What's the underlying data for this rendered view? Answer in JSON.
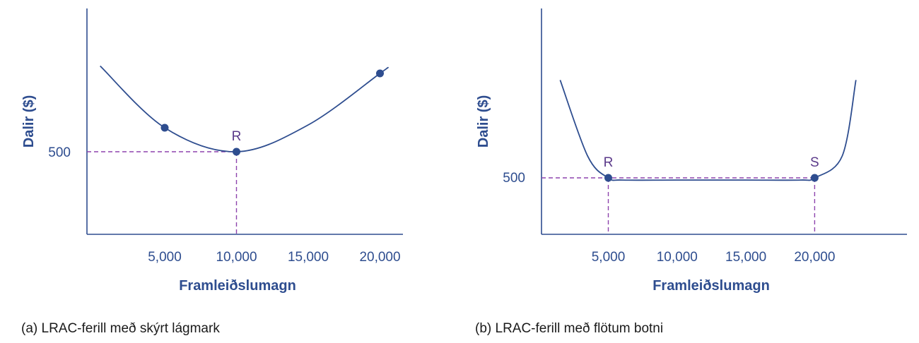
{
  "chart_data": [
    {
      "type": "line",
      "caption": "(a) LRAC-ferill með skýrt lágmark",
      "xlabel": "Framleiðslumagn",
      "ylabel": "Dalir ($)",
      "x_ticks": [
        5000,
        10000,
        15000,
        20000
      ],
      "x_tick_labels": [
        "5,000",
        "10,000",
        "15,000",
        "20,000"
      ],
      "y_ticks": [
        500
      ],
      "y_tick_labels": [
        "500"
      ],
      "series": [
        {
          "x": [
            500,
            5000,
            10000,
            15000,
            20000,
            20500
          ],
          "y": [
            743,
            568,
            500,
            576,
            722,
            737
          ]
        }
      ],
      "markers": [
        {
          "x": 5000,
          "y": 568
        },
        {
          "x": 10000,
          "y": 500,
          "label": "R"
        },
        {
          "x": 20000,
          "y": 722
        }
      ],
      "reference_lines": [
        {
          "x": 10000,
          "y": 500
        }
      ],
      "curve": "u-shaped",
      "color": "#2e4d8f",
      "ref_color": "#8e44ad"
    },
    {
      "type": "line",
      "caption": "(b) LRAC-ferill með flötum botni",
      "xlabel": "Framleiðslumagn",
      "ylabel": "Dalir ($)",
      "x_ticks": [
        5000,
        10000,
        15000,
        20000
      ],
      "x_tick_labels": [
        "5,000",
        "10,000",
        "15,000",
        "20,000"
      ],
      "y_ticks": [
        500
      ],
      "y_tick_labels": [
        "500"
      ],
      "series": [
        {
          "x": [
            1500,
            3500,
            5000,
            6000,
            10000,
            15000,
            19000,
            20000,
            22000,
            23000
          ],
          "y": [
            680,
            540,
            500,
            496,
            496,
            496,
            496,
            500,
            540,
            680
          ]
        }
      ],
      "markers": [
        {
          "x": 5000,
          "y": 500,
          "label": "R"
        },
        {
          "x": 20000,
          "y": 500,
          "label": "S"
        }
      ],
      "reference_lines": [
        {
          "x": 5000,
          "y": 500
        },
        {
          "x": 20000,
          "y": 500
        }
      ],
      "curve": "flat-bottomed",
      "color": "#2e4d8f",
      "ref_color": "#8e44ad"
    }
  ]
}
